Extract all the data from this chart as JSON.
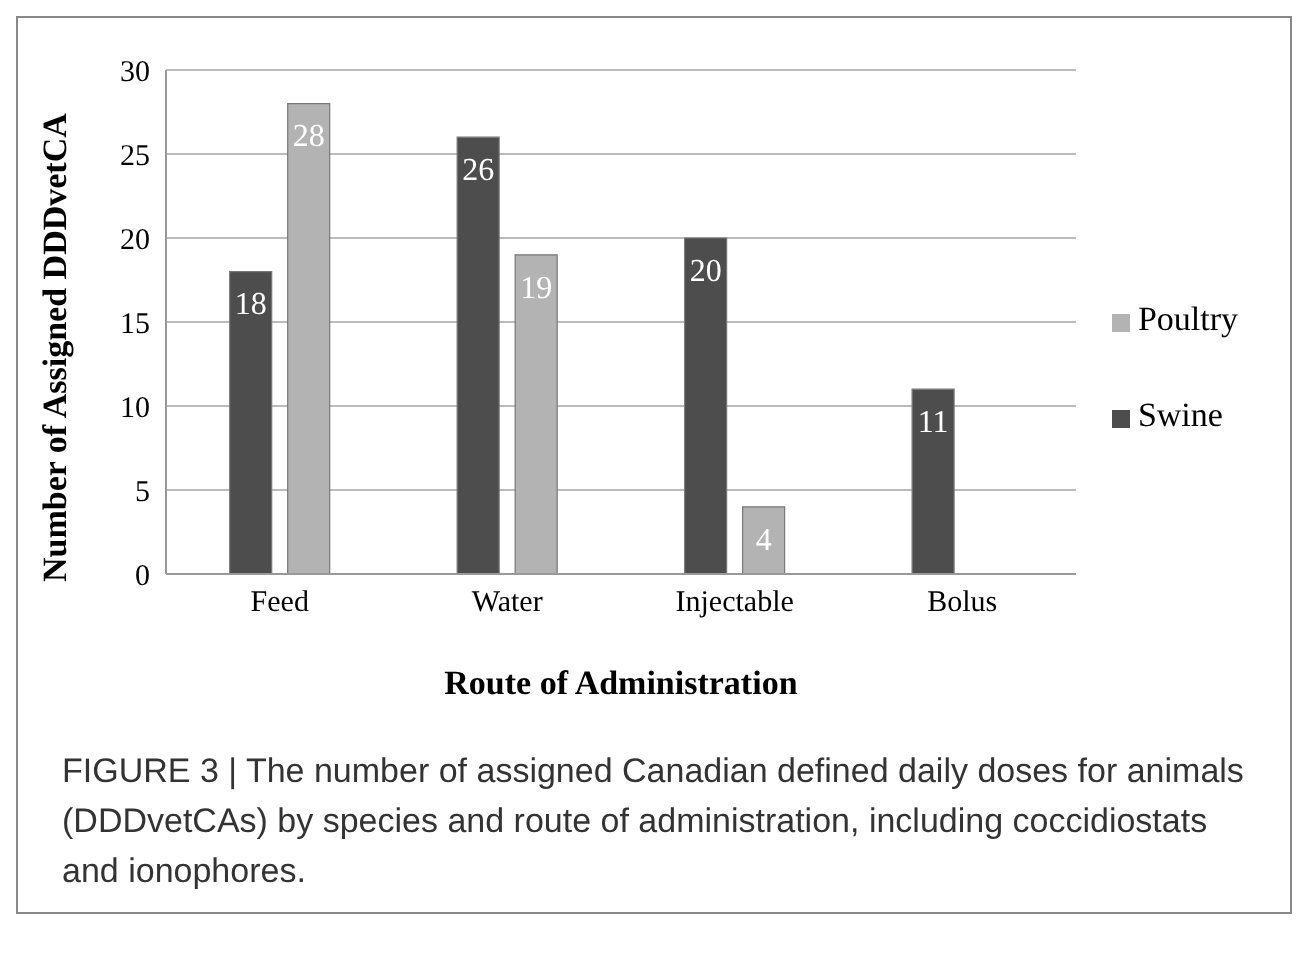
{
  "chart_data": {
    "type": "bar",
    "xlabel": "Route of Administration",
    "ylabel": "Number  of Assigned DDDvetCA",
    "categories": [
      "Feed",
      "Water",
      "Injectable",
      "Bolus"
    ],
    "series": [
      {
        "name": "Swine",
        "color": "#4d4d4d",
        "values": [
          18,
          26,
          20,
          11
        ]
      },
      {
        "name": "Poultry",
        "color": "#b3b3b3",
        "values": [
          28,
          19,
          4,
          null
        ]
      }
    ],
    "ylim": [
      0,
      30
    ],
    "yticks": [
      0,
      5,
      10,
      15,
      20,
      25,
      30
    ],
    "grid": "y",
    "legend": "right",
    "data_labels": true,
    "annotations": [
      "FIGURE 3 | The number of assigned Canadian defined daily doses for animals (DDDvetCAs) by species and route of administration, including coccidiostats and ionophores."
    ]
  }
}
